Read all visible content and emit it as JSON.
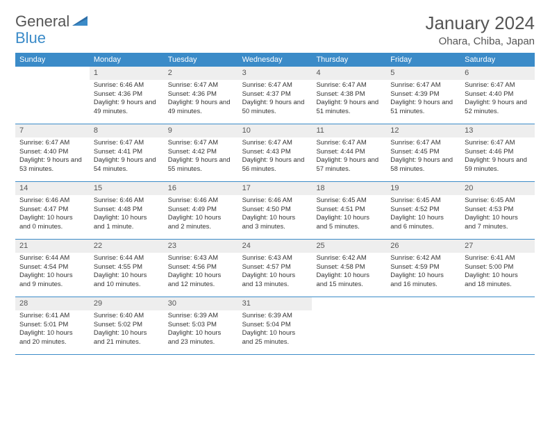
{
  "logo": {
    "text1": "General",
    "text2": "Blue"
  },
  "title": "January 2024",
  "location": "Ohara, Chiba, Japan",
  "weekdays": [
    "Sunday",
    "Monday",
    "Tuesday",
    "Wednesday",
    "Thursday",
    "Friday",
    "Saturday"
  ],
  "colors": {
    "header_bg": "#3B8BC8",
    "daynum_bg": "#eeeeee",
    "text": "#555555"
  },
  "weeks": [
    [
      null,
      {
        "n": "1",
        "sr": "6:46 AM",
        "ss": "4:36 PM",
        "dl": "9 hours and 49 minutes."
      },
      {
        "n": "2",
        "sr": "6:47 AM",
        "ss": "4:36 PM",
        "dl": "9 hours and 49 minutes."
      },
      {
        "n": "3",
        "sr": "6:47 AM",
        "ss": "4:37 PM",
        "dl": "9 hours and 50 minutes."
      },
      {
        "n": "4",
        "sr": "6:47 AM",
        "ss": "4:38 PM",
        "dl": "9 hours and 51 minutes."
      },
      {
        "n": "5",
        "sr": "6:47 AM",
        "ss": "4:39 PM",
        "dl": "9 hours and 51 minutes."
      },
      {
        "n": "6",
        "sr": "6:47 AM",
        "ss": "4:40 PM",
        "dl": "9 hours and 52 minutes."
      }
    ],
    [
      {
        "n": "7",
        "sr": "6:47 AM",
        "ss": "4:40 PM",
        "dl": "9 hours and 53 minutes."
      },
      {
        "n": "8",
        "sr": "6:47 AM",
        "ss": "4:41 PM",
        "dl": "9 hours and 54 minutes."
      },
      {
        "n": "9",
        "sr": "6:47 AM",
        "ss": "4:42 PM",
        "dl": "9 hours and 55 minutes."
      },
      {
        "n": "10",
        "sr": "6:47 AM",
        "ss": "4:43 PM",
        "dl": "9 hours and 56 minutes."
      },
      {
        "n": "11",
        "sr": "6:47 AM",
        "ss": "4:44 PM",
        "dl": "9 hours and 57 minutes."
      },
      {
        "n": "12",
        "sr": "6:47 AM",
        "ss": "4:45 PM",
        "dl": "9 hours and 58 minutes."
      },
      {
        "n": "13",
        "sr": "6:47 AM",
        "ss": "4:46 PM",
        "dl": "9 hours and 59 minutes."
      }
    ],
    [
      {
        "n": "14",
        "sr": "6:46 AM",
        "ss": "4:47 PM",
        "dl": "10 hours and 0 minutes."
      },
      {
        "n": "15",
        "sr": "6:46 AM",
        "ss": "4:48 PM",
        "dl": "10 hours and 1 minute."
      },
      {
        "n": "16",
        "sr": "6:46 AM",
        "ss": "4:49 PM",
        "dl": "10 hours and 2 minutes."
      },
      {
        "n": "17",
        "sr": "6:46 AM",
        "ss": "4:50 PM",
        "dl": "10 hours and 3 minutes."
      },
      {
        "n": "18",
        "sr": "6:45 AM",
        "ss": "4:51 PM",
        "dl": "10 hours and 5 minutes."
      },
      {
        "n": "19",
        "sr": "6:45 AM",
        "ss": "4:52 PM",
        "dl": "10 hours and 6 minutes."
      },
      {
        "n": "20",
        "sr": "6:45 AM",
        "ss": "4:53 PM",
        "dl": "10 hours and 7 minutes."
      }
    ],
    [
      {
        "n": "21",
        "sr": "6:44 AM",
        "ss": "4:54 PM",
        "dl": "10 hours and 9 minutes."
      },
      {
        "n": "22",
        "sr": "6:44 AM",
        "ss": "4:55 PM",
        "dl": "10 hours and 10 minutes."
      },
      {
        "n": "23",
        "sr": "6:43 AM",
        "ss": "4:56 PM",
        "dl": "10 hours and 12 minutes."
      },
      {
        "n": "24",
        "sr": "6:43 AM",
        "ss": "4:57 PM",
        "dl": "10 hours and 13 minutes."
      },
      {
        "n": "25",
        "sr": "6:42 AM",
        "ss": "4:58 PM",
        "dl": "10 hours and 15 minutes."
      },
      {
        "n": "26",
        "sr": "6:42 AM",
        "ss": "4:59 PM",
        "dl": "10 hours and 16 minutes."
      },
      {
        "n": "27",
        "sr": "6:41 AM",
        "ss": "5:00 PM",
        "dl": "10 hours and 18 minutes."
      }
    ],
    [
      {
        "n": "28",
        "sr": "6:41 AM",
        "ss": "5:01 PM",
        "dl": "10 hours and 20 minutes."
      },
      {
        "n": "29",
        "sr": "6:40 AM",
        "ss": "5:02 PM",
        "dl": "10 hours and 21 minutes."
      },
      {
        "n": "30",
        "sr": "6:39 AM",
        "ss": "5:03 PM",
        "dl": "10 hours and 23 minutes."
      },
      {
        "n": "31",
        "sr": "6:39 AM",
        "ss": "5:04 PM",
        "dl": "10 hours and 25 minutes."
      },
      null,
      null,
      null
    ]
  ],
  "labels": {
    "sunrise": "Sunrise:",
    "sunset": "Sunset:",
    "daylight": "Daylight:"
  }
}
